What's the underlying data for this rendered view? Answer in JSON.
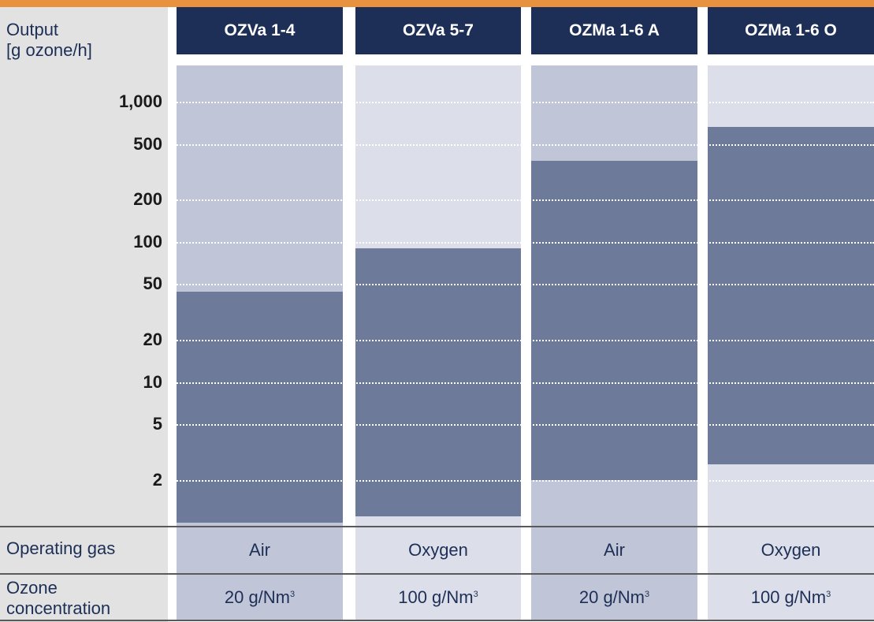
{
  "chart_data": {
    "type": "range-bar",
    "y_axis": {
      "title_line1": "Output",
      "title_line2": "[g ozone/h]",
      "scale": "log",
      "ticks": [
        {
          "value": 1000,
          "label": "1,000"
        },
        {
          "value": 500,
          "label": "500"
        },
        {
          "value": 200,
          "label": "200"
        },
        {
          "value": 100,
          "label": "100"
        },
        {
          "value": 50,
          "label": "50"
        },
        {
          "value": 20,
          "label": "20"
        },
        {
          "value": 10,
          "label": "10"
        },
        {
          "value": 5,
          "label": "5"
        },
        {
          "value": 2,
          "label": "2"
        }
      ],
      "ylim": [
        1,
        1400
      ]
    },
    "categories": [
      {
        "name": "OZVa 1-4",
        "min": 1,
        "max": 44,
        "gas": "Air",
        "concentration": "20 g/Nm",
        "concentration_sup": "3",
        "column_color": "#c0c5d8",
        "cell_color": "#c0c5d8"
      },
      {
        "name": "OZVa 5-7",
        "min": 1.1,
        "max": 90,
        "gas": "Oxygen",
        "concentration": "100 g/Nm",
        "concentration_sup": "3",
        "column_color": "#dcdfea",
        "cell_color": "#dcdfea"
      },
      {
        "name": "OZMa 1-6 A",
        "min": 2,
        "max": 380,
        "gas": "Air",
        "concentration": "20 g/Nm",
        "concentration_sup": "3",
        "column_color": "#c0c5d8",
        "cell_color": "#c0c5d8"
      },
      {
        "name": "OZMa 1-6 O",
        "min": 2.6,
        "max": 660,
        "gas": "Oxygen",
        "concentration": "100 g/Nm",
        "concentration_sup": "3",
        "column_color": "#dcdfea",
        "cell_color": "#dcdfea"
      }
    ]
  },
  "rows": {
    "gas_label": "Operating gas",
    "concentration_label_line1": "Ozone",
    "concentration_label_line2": "concentration"
  },
  "colors": {
    "header": "#1d2f56",
    "range_bar": "#6e7a9a",
    "accent_stripe": "#e8913f"
  }
}
